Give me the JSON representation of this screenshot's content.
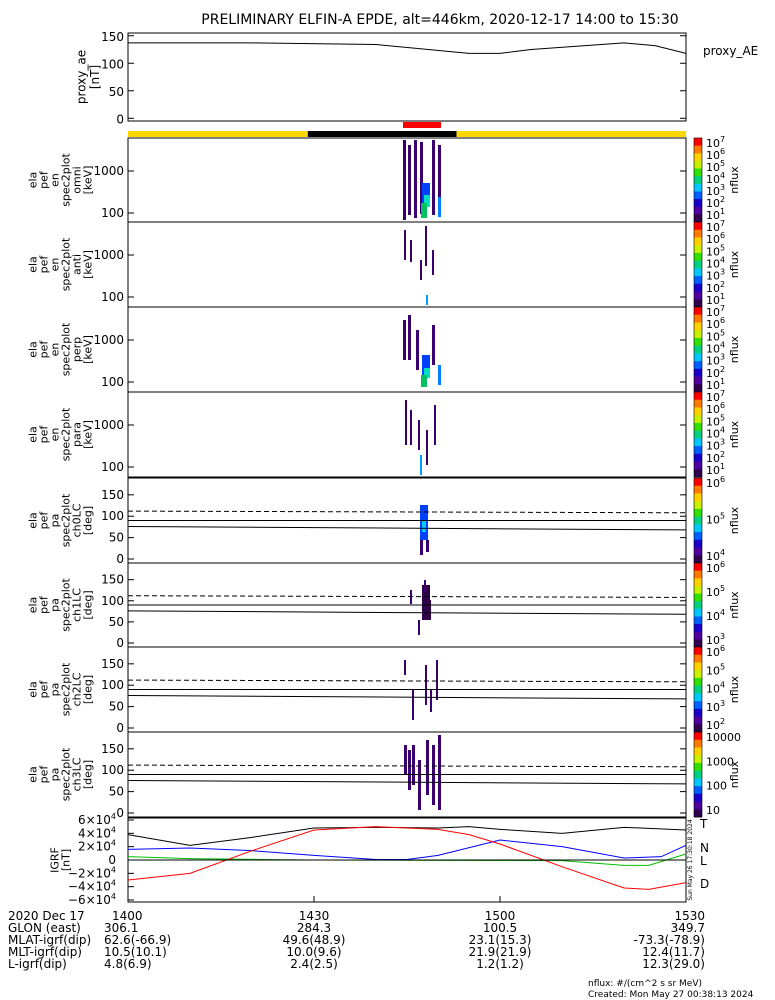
{
  "title": "PRELIMINARY ELFIN-A EPDE, alt=446km, 2020-12-17 14:00 to 15:30",
  "colors": {
    "yellow": "#ffd700",
    "black": "#000000",
    "red": "#ff0000",
    "blue": "#0000ff",
    "green": "#00c000"
  },
  "chart_data": [
    {
      "type": "line",
      "ylabel": "proxy_ae [nT]",
      "legend": "proxy_AE",
      "yticks": [
        "150",
        "100",
        "50",
        "0"
      ],
      "ylim": [
        -5,
        155
      ],
      "x_minutes": [
        0,
        20,
        40,
        55,
        60,
        65,
        80,
        85,
        90
      ],
      "values": [
        137,
        137,
        134,
        118,
        118,
        125,
        137,
        132,
        118
      ]
    },
    {
      "type": "heatmap",
      "ylabel": "ela pef en spec2plot omni [keV]",
      "yticks": [
        "1000",
        "100"
      ],
      "cbar": [
        "10",
        "10",
        "10",
        "10",
        "10",
        "10",
        "10"
      ],
      "cbar_exp": [
        "7",
        "6",
        "5",
        "4",
        "3",
        "2",
        "1"
      ],
      "cbar_label": "nflux"
    },
    {
      "type": "heatmap",
      "ylabel": "ela pef en spec2plot anti [keV]",
      "yticks": [
        "1000",
        "100"
      ],
      "cbar_exp": [
        "7",
        "6",
        "5",
        "4",
        "3",
        "2",
        "1"
      ],
      "cbar_label": "nflux"
    },
    {
      "type": "heatmap",
      "ylabel": "ela pef en spec2plot perp [keV]",
      "yticks": [
        "1000",
        "100"
      ],
      "cbar_exp": [
        "7",
        "6",
        "5",
        "4",
        "3",
        "2",
        "1"
      ],
      "cbar_label": "nflux"
    },
    {
      "type": "heatmap",
      "ylabel": "ela pef en spec2plot para [keV]",
      "yticks": [
        "1000",
        "100"
      ],
      "cbar_exp": [
        "7",
        "6",
        "5",
        "4",
        "3",
        "2",
        "1"
      ],
      "cbar_label": "nflux"
    },
    {
      "type": "heatmap",
      "ylabel": "ela pef pa spec2plot ch0LC [deg]",
      "yticks": [
        "150",
        "100",
        "50",
        "0"
      ],
      "cbar_exp": [
        "6",
        "5",
        "4"
      ],
      "cbar_label": "nflux"
    },
    {
      "type": "heatmap",
      "ylabel": "ela pef pa spec2plot ch1LC [deg]",
      "yticks": [
        "150",
        "100",
        "50",
        "0"
      ],
      "cbar_exp": [
        "6",
        "5",
        "4",
        "3"
      ],
      "cbar_label": "nflux"
    },
    {
      "type": "heatmap",
      "ylabel": "ela pef pa spec2plot ch2LC [deg]",
      "yticks": [
        "150",
        "100",
        "50",
        "0"
      ],
      "cbar_exp": [
        "6",
        "5",
        "4",
        "3",
        "2"
      ],
      "cbar_label": "nflux"
    },
    {
      "type": "heatmap",
      "ylabel": "ela pef pa spec2plot ch3LC [deg]",
      "yticks": [
        "150",
        "100",
        "50",
        "0"
      ],
      "cbar_ticks": [
        "10000",
        "1000",
        "100",
        "10"
      ],
      "cbar_label": "nflux"
    },
    {
      "type": "line",
      "ylabel": "IGRF [nT]",
      "yticks_base": [
        "6",
        "4",
        "2",
        "0",
        "−2",
        "−4",
        "−6"
      ],
      "ylim": [
        -60000,
        60000
      ],
      "series": [
        {
          "name": "T",
          "x_minutes": [
            0,
            10,
            20,
            30,
            40,
            50,
            55,
            60,
            70,
            80,
            90
          ],
          "values": [
            38000,
            22000,
            34000,
            48000,
            49000,
            48000,
            50000,
            46000,
            40000,
            49000,
            45000
          ]
        },
        {
          "name": "N",
          "x_minutes": [
            0,
            10,
            20,
            30,
            40,
            45,
            50,
            60,
            70,
            80,
            86,
            90
          ],
          "values": [
            16000,
            18000,
            14000,
            7000,
            700,
            700,
            7000,
            30000,
            20000,
            3000,
            5000,
            22000
          ]
        },
        {
          "name": "L",
          "x_minutes": [
            0,
            10,
            30,
            50,
            70,
            80,
            84,
            90
          ],
          "values": [
            5000,
            2000,
            0,
            -500,
            -1000,
            -8000,
            -8000,
            9000
          ]
        },
        {
          "name": "D",
          "x_minutes": [
            0,
            10,
            20,
            30,
            40,
            50,
            55,
            60,
            70,
            80,
            84,
            90
          ],
          "values": [
            -30000,
            -20000,
            14000,
            45000,
            50000,
            46000,
            38000,
            24000,
            -10000,
            -42000,
            -44000,
            -34000
          ]
        }
      ],
      "side_text": "Sun May 26 17:30:18 2024"
    }
  ],
  "xaxis": {
    "tick_labels": [
      "1400",
      "1430",
      "1500",
      "1530"
    ],
    "rows": [
      {
        "label": "2020 Dec 17",
        "values": [
          "1400",
          "1430",
          "1500",
          "1530"
        ]
      },
      {
        "label": "GLON (east)",
        "values": [
          "306.1",
          "284.3",
          "100.5",
          "349.7"
        ]
      },
      {
        "label": "MLAT-igrf(dip)",
        "values": [
          "62.6(-66.9)",
          "49.6(48.9)",
          "23.1(15.3)",
          "-73.3(-78.9)"
        ]
      },
      {
        "label": "MLT-igrf(dip)",
        "values": [
          "10.5(10.1)",
          "10.0(9.6)",
          "21.9(21.9)",
          "12.4(11.7)"
        ]
      },
      {
        "label": "L-igrf(dip)",
        "values": [
          "4.8(6.9)",
          "2.4(2.5)",
          "1.2(1.2)",
          "12.3(29.0)"
        ]
      }
    ]
  },
  "footer": {
    "units": "nflux: #/(cm^2 s sr MeV)",
    "created": "Created: Mon May 27 00:38:13 2024"
  }
}
